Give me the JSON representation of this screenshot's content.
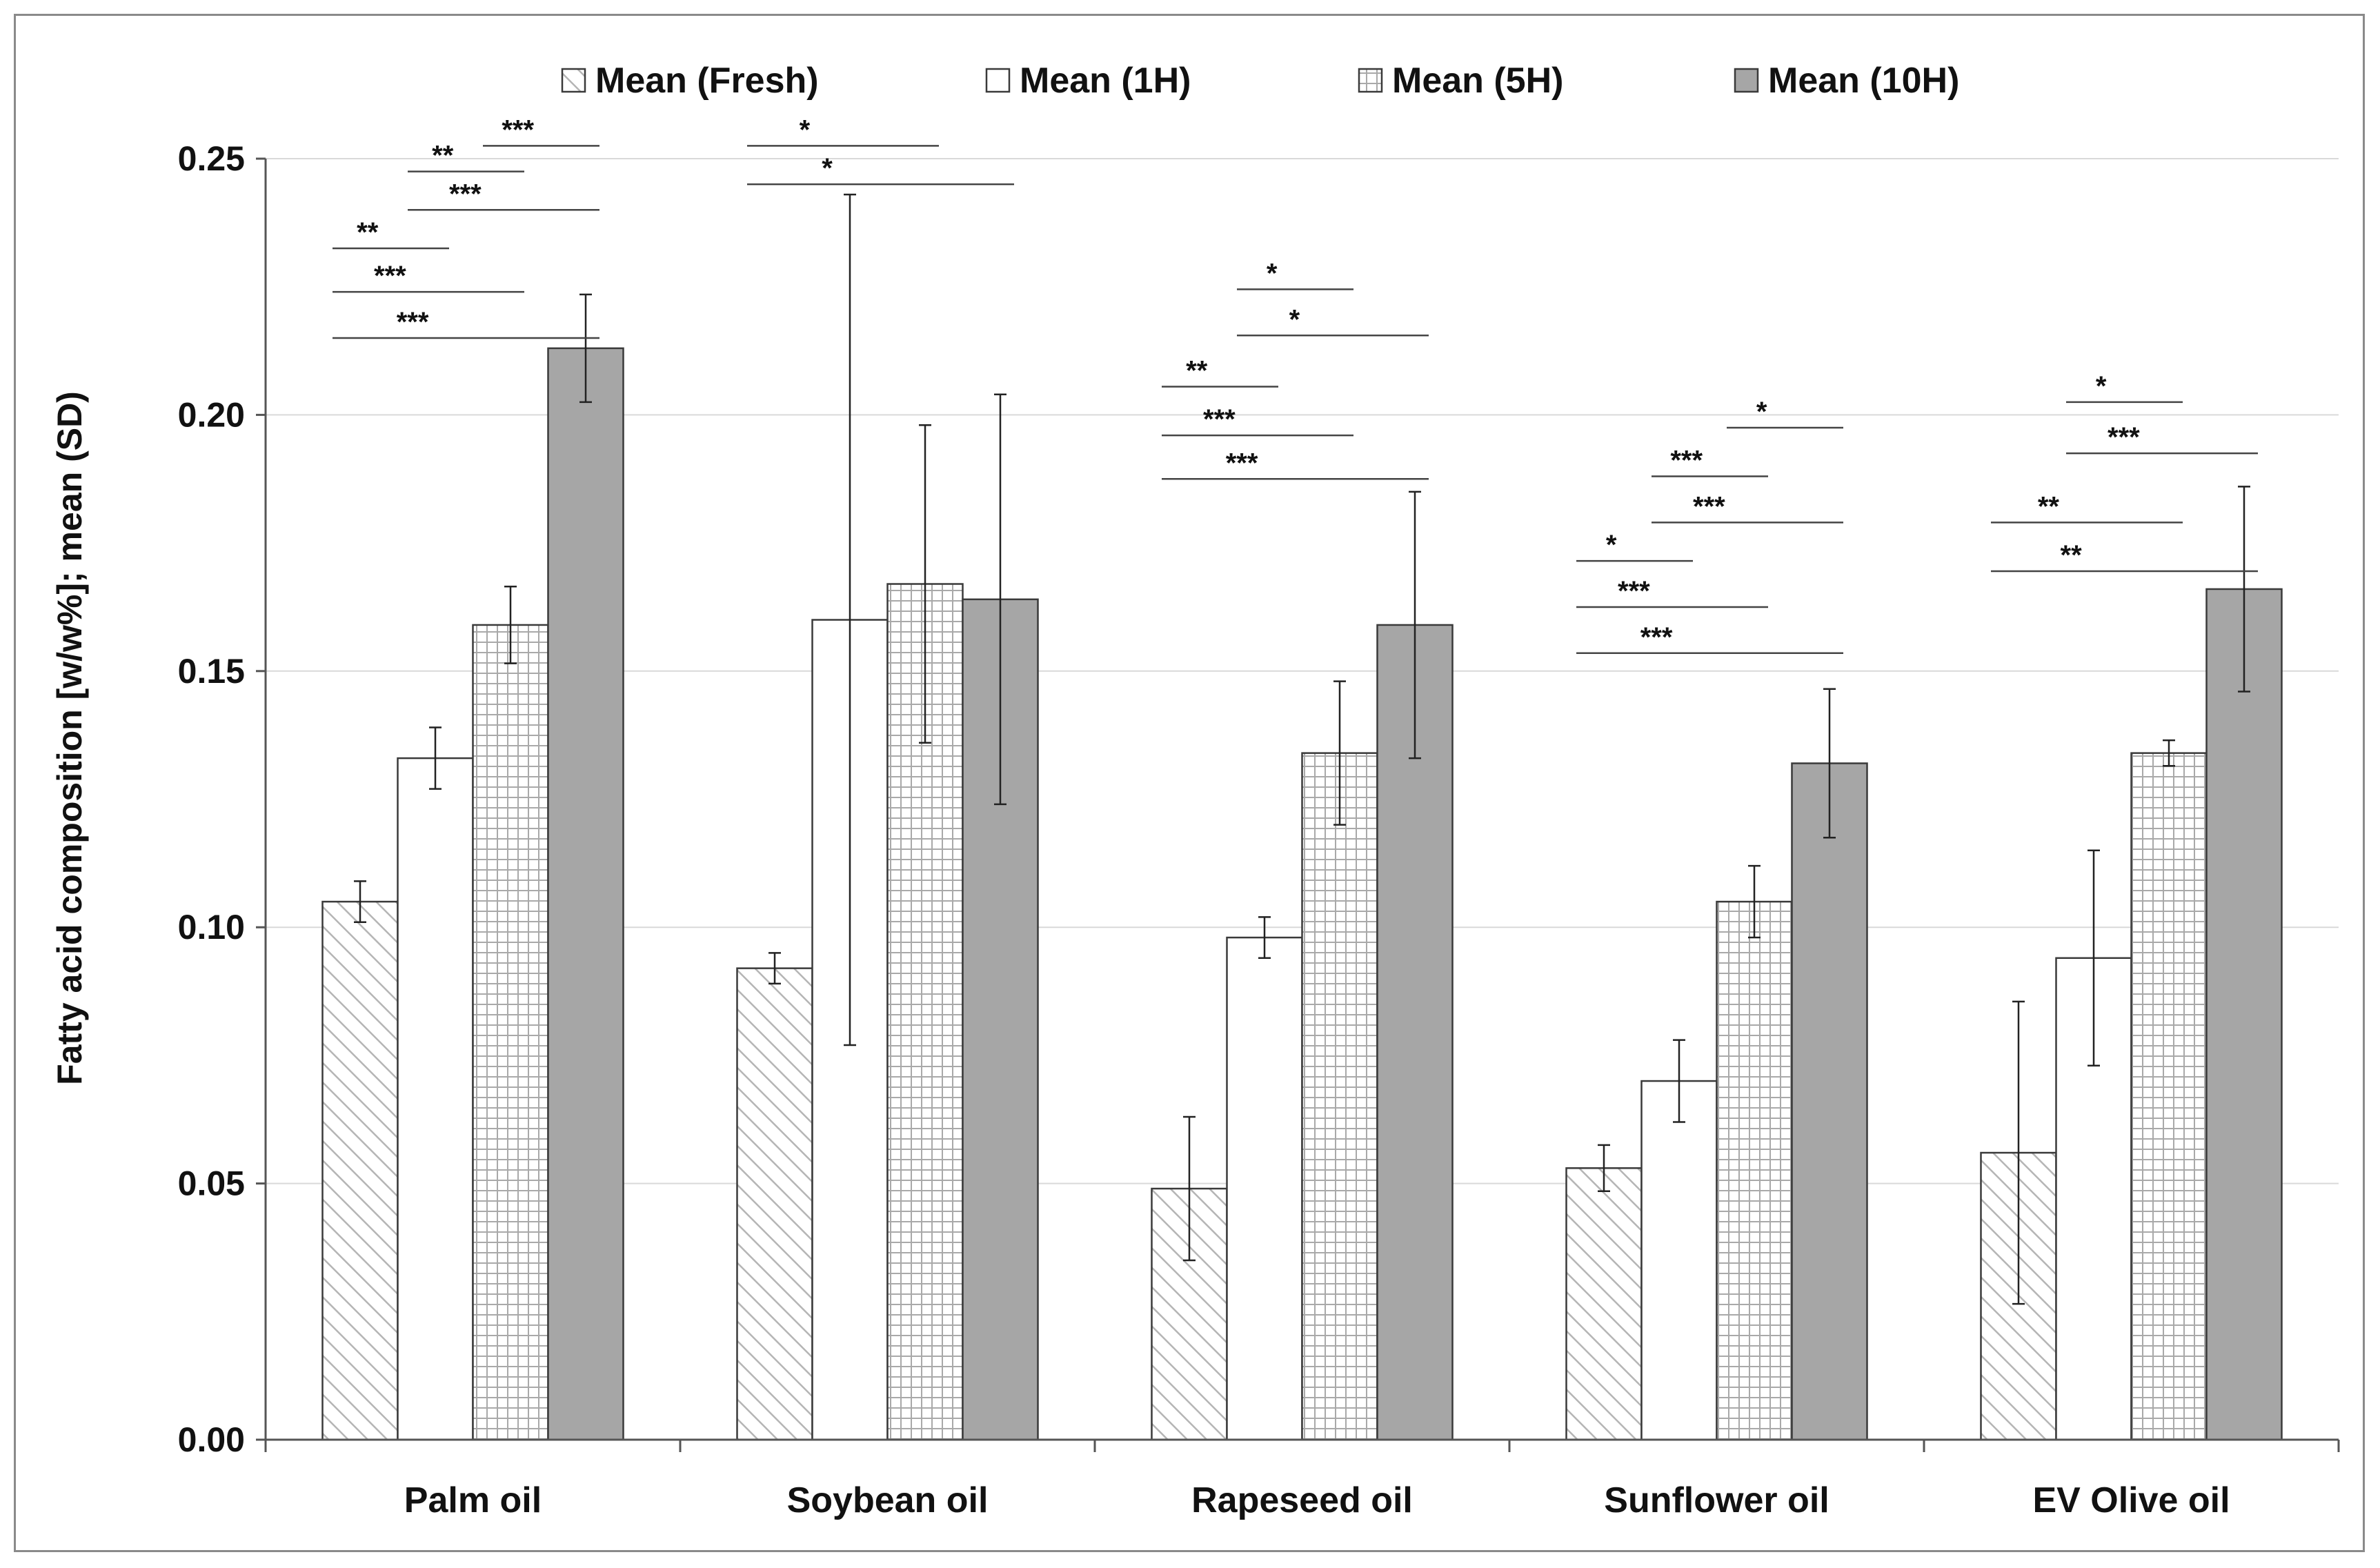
{
  "chart_data": {
    "type": "bar",
    "title": "",
    "xlabel": "",
    "ylabel": "Fatty acid composition [w/w%]; mean (SD)",
    "ylim": [
      0,
      0.25
    ],
    "yticks": [
      "0.00",
      "0.05",
      "0.10",
      "0.15",
      "0.20",
      "0.25"
    ],
    "grid": true,
    "legend_position": "top",
    "categories": [
      "Palm oil",
      "Soybean oil",
      "Rapeseed oil",
      "Sunflower oil",
      "EV Olive oil"
    ],
    "series": [
      {
        "name": "Mean (Fresh)",
        "pattern": "diagonal-hatch",
        "color": "#ffffff",
        "values": [
          0.105,
          0.092,
          0.049,
          0.053,
          0.056
        ],
        "sd": [
          0.004,
          0.003,
          0.014,
          0.0045,
          0.0295
        ]
      },
      {
        "name": "Mean (1H)",
        "pattern": "solid",
        "color": "#ffffff",
        "values": [
          0.133,
          0.16,
          0.098,
          0.07,
          0.094
        ],
        "sd": [
          0.006,
          0.083,
          0.004,
          0.008,
          0.021
        ]
      },
      {
        "name": "Mean (5H)",
        "pattern": "grid-hatch",
        "color": "#ffffff",
        "values": [
          0.159,
          0.167,
          0.134,
          0.105,
          0.134
        ],
        "sd": [
          0.0075,
          0.031,
          0.014,
          0.007,
          0.0025
        ]
      },
      {
        "name": "Mean (10H)",
        "pattern": "solid",
        "color": "#a6a6a6",
        "values": [
          0.213,
          0.164,
          0.159,
          0.132,
          0.166
        ],
        "sd": [
          0.0105,
          0.04,
          0.026,
          0.0145,
          0.02
        ]
      }
    ],
    "significance": [
      {
        "category": 0,
        "from": 0,
        "to": 1,
        "label": "**",
        "level": 0.2325
      },
      {
        "category": 0,
        "from": 0,
        "to": 2,
        "label": "***",
        "level": 0.224
      },
      {
        "category": 0,
        "from": 0,
        "to": 3,
        "label": "***",
        "level": 0.215
      },
      {
        "category": 0,
        "from": 1,
        "to": 2,
        "label": "**",
        "level": 0.2475
      },
      {
        "category": 0,
        "from": 1,
        "to": 3,
        "label": "***",
        "level": 0.24
      },
      {
        "category": 0,
        "from": 2,
        "to": 3,
        "label": "***",
        "level": 0.2525
      },
      {
        "category": 1,
        "from": 0,
        "to": 2,
        "label": "*",
        "level": 0.2525
      },
      {
        "category": 1,
        "from": 0,
        "to": 3,
        "label": "*",
        "level": 0.245
      },
      {
        "category": 2,
        "from": 0,
        "to": 1,
        "label": "**",
        "level": 0.2055
      },
      {
        "category": 2,
        "from": 0,
        "to": 2,
        "label": "***",
        "level": 0.196
      },
      {
        "category": 2,
        "from": 0,
        "to": 3,
        "label": "***",
        "level": 0.1875
      },
      {
        "category": 2,
        "from": 1,
        "to": 2,
        "label": "*",
        "level": 0.2245
      },
      {
        "category": 2,
        "from": 1,
        "to": 3,
        "label": "*",
        "level": 0.2155
      },
      {
        "category": 3,
        "from": 0,
        "to": 1,
        "label": "*",
        "level": 0.1715
      },
      {
        "category": 3,
        "from": 0,
        "to": 2,
        "label": "***",
        "level": 0.1625
      },
      {
        "category": 3,
        "from": 0,
        "to": 3,
        "label": "***",
        "level": 0.1535
      },
      {
        "category": 3,
        "from": 1,
        "to": 2,
        "label": "***",
        "level": 0.188
      },
      {
        "category": 3,
        "from": 1,
        "to": 3,
        "label": "***",
        "level": 0.179
      },
      {
        "category": 3,
        "from": 2,
        "to": 3,
        "label": "*",
        "level": 0.1975
      },
      {
        "category": 4,
        "from": 0,
        "to": 2,
        "label": "**",
        "level": 0.179
      },
      {
        "category": 4,
        "from": 0,
        "to": 3,
        "label": "**",
        "level": 0.1695
      },
      {
        "category": 4,
        "from": 1,
        "to": 2,
        "label": "*",
        "level": 0.2025
      },
      {
        "category": 4,
        "from": 1,
        "to": 3,
        "label": "***",
        "level": 0.1925
      }
    ]
  }
}
